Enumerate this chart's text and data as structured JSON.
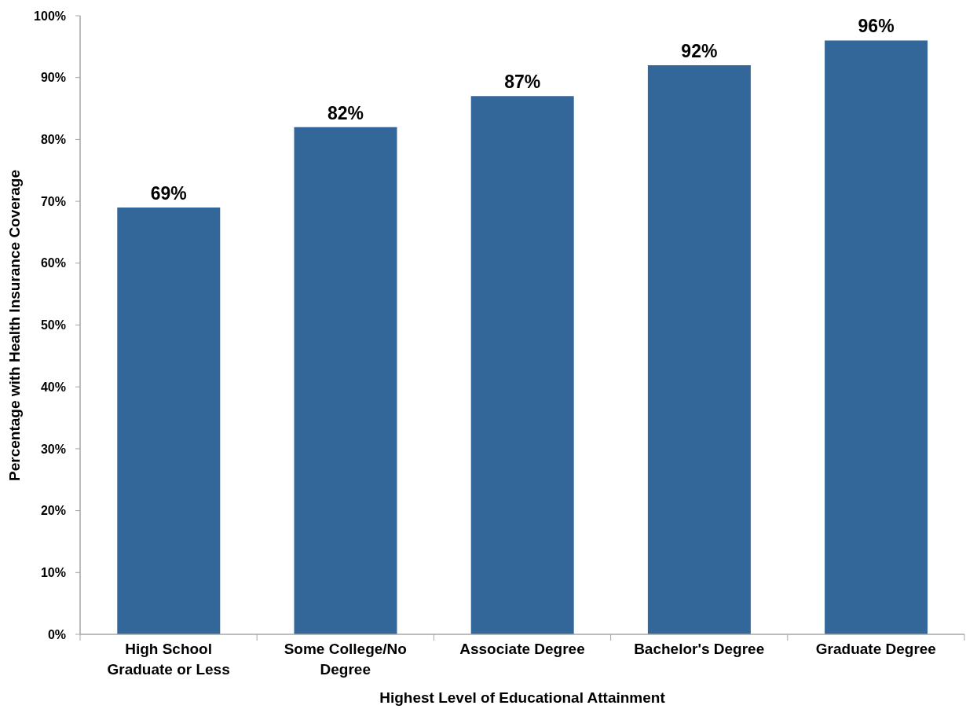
{
  "chart_data": {
    "type": "bar",
    "xlabel": "Highest Level of Educational Attainment",
    "ylabel": "Percentage with Health Insurance Coverage",
    "categories": [
      "High School Graduate or Less",
      "Some College/No Degree",
      "Associate Degree",
      "Bachelor's Degree",
      "Graduate Degree"
    ],
    "values": [
      69,
      82,
      87,
      92,
      96
    ],
    "value_labels": [
      "69%",
      "82%",
      "87%",
      "92%",
      "96%"
    ],
    "color": "#336699",
    "ylim": [
      0,
      100
    ],
    "yticks": [
      {
        "value": 0,
        "label": "0%"
      },
      {
        "value": 10,
        "label": "10%"
      },
      {
        "value": 20,
        "label": "20%"
      },
      {
        "value": 30,
        "label": "30%"
      },
      {
        "value": 40,
        "label": "40%"
      },
      {
        "value": 50,
        "label": "50%"
      },
      {
        "value": 60,
        "label": "60%"
      },
      {
        "value": 70,
        "label": "70%"
      },
      {
        "value": 80,
        "label": "80%"
      },
      {
        "value": 90,
        "label": "90%"
      },
      {
        "value": 100,
        "label": "100%"
      }
    ]
  }
}
